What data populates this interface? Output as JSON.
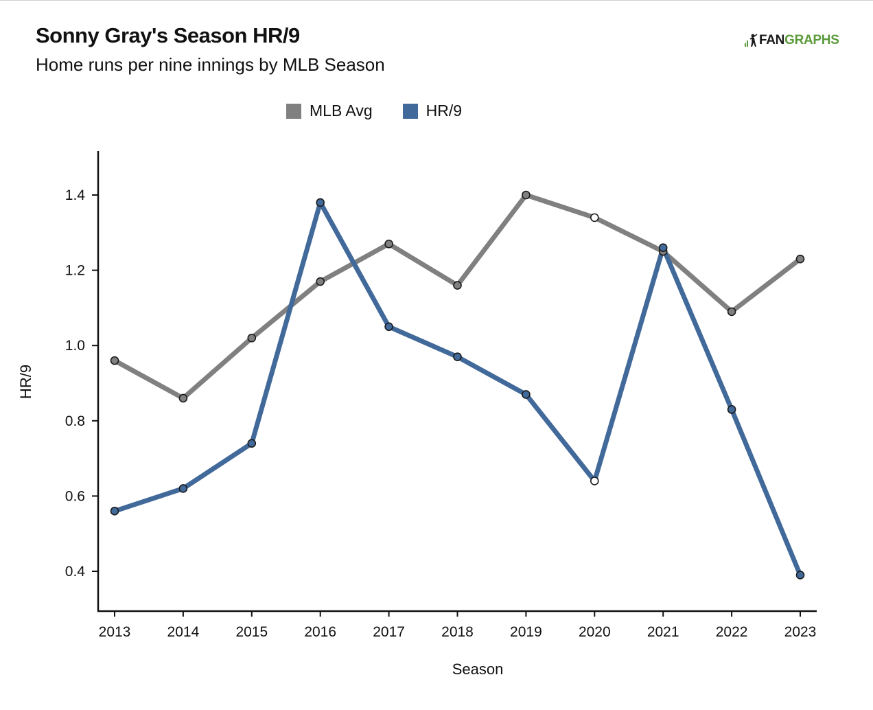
{
  "header": {
    "title": "Sonny Gray's Season HR/9",
    "subtitle": "Home runs per nine innings by MLB Season"
  },
  "logo": {
    "text_fan": "FAN",
    "text_graphs": "GRAPHS"
  },
  "colors": {
    "mlb_avg": "#808080",
    "hr9": "#41699a",
    "axis": "#111111",
    "logo_green": "#5b9a3a"
  },
  "chart_data": {
    "type": "line",
    "title": "Sonny Gray's Season HR/9",
    "subtitle": "Home runs per nine innings by MLB Season",
    "xlabel": "Season",
    "ylabel": "HR/9",
    "x": [
      2013,
      2014,
      2015,
      2016,
      2017,
      2018,
      2019,
      2020,
      2021,
      2022,
      2023
    ],
    "x_tick_labels": [
      "2013",
      "2014",
      "2015",
      "2016",
      "2017",
      "2018",
      "2019",
      "2020",
      "2021",
      "2022",
      "2023"
    ],
    "y_ticks": [
      0.4,
      0.6,
      0.8,
      1.0,
      1.2,
      1.4
    ],
    "y_tick_labels": [
      "0.4",
      "0.6",
      "0.8",
      "1.0",
      "1.2",
      "1.4"
    ],
    "ylim": [
      0.32,
      1.52
    ],
    "grid": false,
    "legend_position": "top-center",
    "series": [
      {
        "name": "MLB Avg",
        "color": "#808080",
        "values": [
          0.96,
          0.86,
          1.02,
          1.17,
          1.27,
          1.16,
          1.4,
          1.34,
          1.25,
          1.09,
          1.23
        ]
      },
      {
        "name": "HR/9",
        "color": "#41699a",
        "values": [
          0.56,
          0.62,
          0.74,
          1.38,
          1.05,
          0.97,
          0.87,
          0.64,
          1.26,
          0.83,
          0.39
        ]
      }
    ],
    "hollow_markers_at": [
      2020
    ]
  }
}
